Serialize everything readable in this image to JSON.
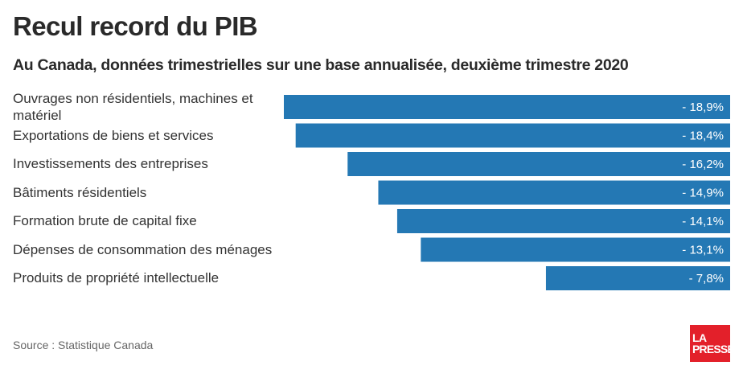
{
  "header": {
    "title": "Recul record du PIB",
    "subtitle": "Au Canada, données trimestrielles sur une base annualisée, deuxième trimestre 2020"
  },
  "footer": {
    "source": "Source : Statistique Canada",
    "logo_line1": "LA",
    "logo_line2": "PRESSE"
  },
  "colors": {
    "bar": "#2478b4",
    "bar_label": "#ffffff",
    "logo": "#e3202a"
  },
  "chart_data": {
    "type": "bar",
    "orientation": "horizontal",
    "title": "Recul record du PIB",
    "subtitle": "Au Canada, données trimestrielles sur une base annualisée, deuxième trimestre 2020",
    "categories": [
      "Ouvrages non résidentiels, machines et matériel",
      "Exportations de biens et services",
      "Investissements des entreprises",
      "Bâtiments résidentiels",
      "Formation brute de capital fixe",
      "Dépenses de consommation des ménages",
      "Produits de propriété intellectuelle"
    ],
    "values": [
      -18.9,
      -18.4,
      -16.2,
      -14.9,
      -14.1,
      -13.1,
      -7.8
    ],
    "data_labels": [
      "- 18,9%",
      "- 18,4%",
      "- 16,2%",
      "- 14,9%",
      "- 14,1%",
      "- 13,1%",
      "- 7,8%"
    ],
    "xlim": [
      -18.9,
      0
    ],
    "grid": false,
    "legend": "none"
  }
}
